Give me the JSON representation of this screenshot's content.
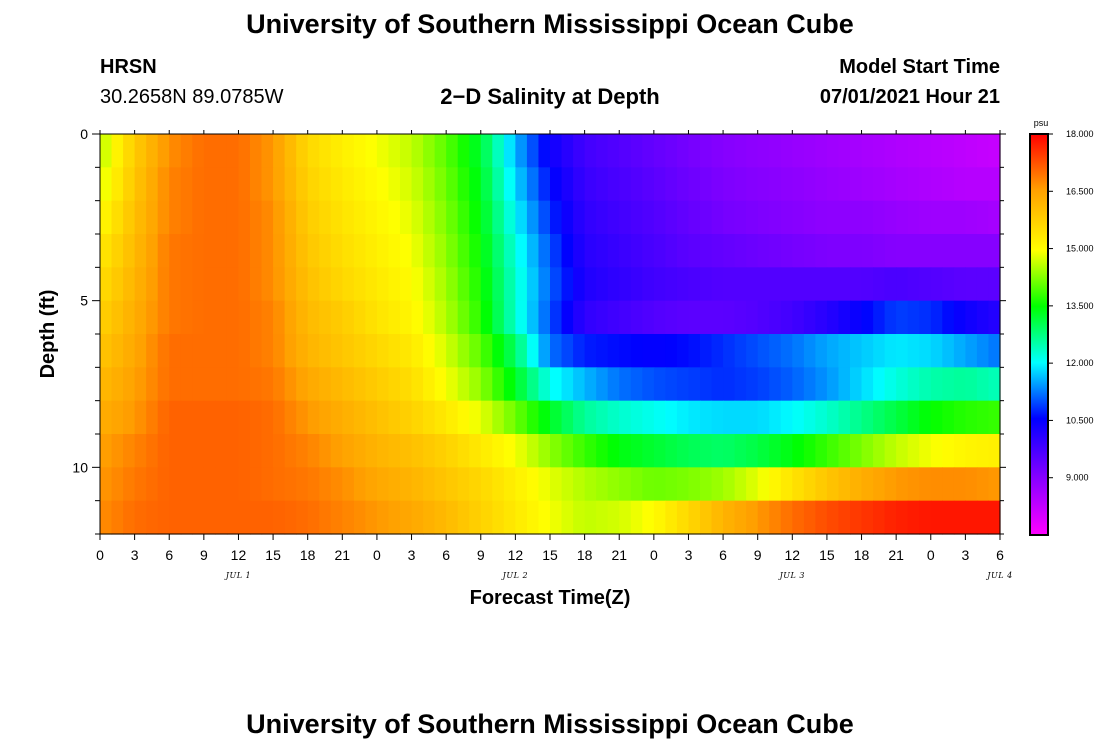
{
  "header": {
    "title_top": "University of Southern Mississippi Ocean Cube",
    "title_bottom": "University of Southern Mississippi Ocean Cube",
    "station": "HRSN",
    "coords": "30.2658N  89.0785W",
    "model_start_label": "Model Start Time",
    "model_start_value": "07/01/2021 Hour 21"
  },
  "chart_data": {
    "type": "heatmap",
    "title": "2−D Salinity at Depth",
    "xlabel": "Forecast Time(Z)",
    "ylabel": "Depth (ft)",
    "ylim": [
      0,
      12
    ],
    "y_ticks": [
      "0",
      "5",
      "10"
    ],
    "x_ticks": [
      "0",
      "3",
      "6",
      "9",
      "12",
      "15",
      "18",
      "21",
      "0",
      "3",
      "6",
      "9",
      "12",
      "15",
      "18",
      "21",
      "0",
      "3",
      "6",
      "9",
      "12",
      "15",
      "18",
      "21",
      "0",
      "3",
      "6"
    ],
    "day_labels": [
      "JUL 1",
      "JUL 2",
      "JUL 3",
      "JUL 4"
    ],
    "day_label_hours": [
      12,
      36,
      60,
      78
    ],
    "hours": 78,
    "layer_depths_ft": [
      0.5,
      1.5,
      2.5,
      3.5,
      4.5,
      5.5,
      6.5,
      7.5,
      8.5,
      9.5,
      10.5,
      11.5
    ],
    "colorbar": {
      "unit": "psu",
      "ticks": [
        "18.000",
        "16.500",
        "15.000",
        "13.500",
        "12.000",
        "10.500",
        "9.000"
      ],
      "min": 7.5,
      "max": 18.0
    },
    "profiles_psu": [
      {
        "layer": 0,
        "hours": [
          0,
          3,
          6,
          9,
          12,
          15,
          18,
          21,
          24,
          27,
          30,
          33,
          36,
          39,
          42,
          45,
          48,
          51,
          54,
          57,
          60,
          63,
          66,
          69,
          72,
          75,
          78
        ],
        "values": [
          14.5,
          15.8,
          16.7,
          17.0,
          17.0,
          16.6,
          15.6,
          15.2,
          14.9,
          14.6,
          14.0,
          13.2,
          11.6,
          10.4,
          9.8,
          9.6,
          9.4,
          9.2,
          9.0,
          8.9,
          8.8,
          8.7,
          8.6,
          8.5,
          8.4,
          8.3,
          8.2
        ]
      },
      {
        "layer": 1,
        "hours": [
          0,
          3,
          6,
          9,
          12,
          15,
          18,
          21,
          24,
          27,
          30,
          33,
          36,
          39,
          42,
          45,
          48,
          51,
          54,
          57,
          60,
          63,
          66,
          69,
          72,
          75,
          78
        ],
        "values": [
          14.7,
          15.9,
          16.8,
          17.0,
          17.0,
          16.6,
          15.7,
          15.3,
          15.0,
          14.7,
          14.1,
          13.3,
          11.8,
          10.6,
          9.9,
          9.7,
          9.5,
          9.3,
          9.1,
          9.0,
          8.9,
          8.8,
          8.7,
          8.6,
          8.5,
          8.4,
          8.4
        ]
      },
      {
        "layer": 2,
        "hours": [
          0,
          3,
          6,
          9,
          12,
          15,
          18,
          21,
          24,
          27,
          30,
          33,
          36,
          39,
          42,
          45,
          48,
          51,
          54,
          57,
          60,
          63,
          66,
          69,
          72,
          75,
          78
        ],
        "values": [
          15.0,
          16.0,
          16.8,
          17.0,
          17.0,
          16.7,
          15.8,
          15.4,
          15.1,
          14.8,
          14.2,
          13.4,
          12.0,
          10.8,
          10.0,
          9.8,
          9.6,
          9.4,
          9.2,
          9.1,
          9.0,
          8.9,
          8.9,
          8.8,
          8.7,
          8.7,
          8.6
        ]
      },
      {
        "layer": 3,
        "hours": [
          0,
          3,
          6,
          9,
          12,
          15,
          18,
          21,
          24,
          27,
          30,
          33,
          36,
          39,
          42,
          45,
          48,
          51,
          54,
          57,
          60,
          63,
          66,
          69,
          72,
          75,
          78
        ],
        "values": [
          15.3,
          16.1,
          16.9,
          17.0,
          17.0,
          16.7,
          15.9,
          15.5,
          15.2,
          14.9,
          14.3,
          13.5,
          12.2,
          11.0,
          10.1,
          9.9,
          9.7,
          9.5,
          9.4,
          9.3,
          9.2,
          9.1,
          9.1,
          9.0,
          9.0,
          9.0,
          9.0
        ]
      },
      {
        "layer": 4,
        "hours": [
          0,
          3,
          6,
          9,
          12,
          15,
          18,
          21,
          24,
          27,
          30,
          33,
          36,
          39,
          42,
          45,
          48,
          51,
          54,
          57,
          60,
          63,
          66,
          69,
          72,
          75,
          78
        ],
        "values": [
          15.5,
          16.2,
          16.9,
          17.0,
          17.0,
          16.7,
          16.0,
          15.6,
          15.3,
          15.0,
          14.4,
          13.6,
          12.3,
          11.1,
          10.2,
          10.0,
          9.8,
          9.7,
          9.6,
          9.6,
          9.6,
          9.6,
          9.6,
          9.7,
          9.6,
          9.5,
          9.5
        ]
      },
      {
        "layer": 5,
        "hours": [
          0,
          3,
          6,
          9,
          12,
          15,
          18,
          21,
          24,
          27,
          30,
          33,
          36,
          39,
          42,
          45,
          48,
          51,
          54,
          57,
          60,
          63,
          66,
          69,
          72,
          75,
          78
        ],
        "values": [
          15.7,
          16.3,
          16.9,
          17.0,
          17.0,
          16.8,
          16.1,
          15.8,
          15.4,
          15.1,
          14.5,
          13.7,
          12.3,
          11.0,
          10.0,
          9.8,
          9.6,
          9.5,
          9.5,
          9.6,
          9.8,
          10.1,
          10.5,
          10.9,
          10.8,
          10.4,
          10.1
        ]
      },
      {
        "layer": 6,
        "hours": [
          0,
          3,
          6,
          9,
          12,
          15,
          18,
          21,
          24,
          27,
          30,
          33,
          36,
          39,
          42,
          45,
          48,
          51,
          54,
          57,
          60,
          63,
          66,
          69,
          72,
          75,
          78
        ],
        "values": [
          15.9,
          16.4,
          17.0,
          17.0,
          17.0,
          16.8,
          16.2,
          15.9,
          15.6,
          15.3,
          14.7,
          14.0,
          12.9,
          11.2,
          10.7,
          10.6,
          10.5,
          10.6,
          10.8,
          11.0,
          11.2,
          11.5,
          11.7,
          11.9,
          11.8,
          11.5,
          11.2
        ]
      },
      {
        "layer": 7,
        "hours": [
          0,
          3,
          6,
          9,
          12,
          15,
          18,
          21,
          24,
          27,
          30,
          33,
          36,
          39,
          42,
          45,
          48,
          51,
          54,
          57,
          60,
          63,
          66,
          69,
          72,
          75,
          78
        ],
        "values": [
          16.1,
          16.5,
          17.0,
          17.0,
          17.0,
          16.9,
          16.4,
          16.1,
          15.8,
          15.5,
          14.9,
          14.3,
          13.3,
          12.1,
          11.6,
          11.2,
          11.0,
          10.9,
          10.8,
          10.9,
          11.1,
          11.4,
          11.8,
          12.2,
          12.5,
          12.6,
          12.4
        ]
      },
      {
        "layer": 8,
        "hours": [
          0,
          3,
          6,
          9,
          12,
          15,
          18,
          21,
          24,
          27,
          30,
          33,
          36,
          39,
          42,
          45,
          48,
          51,
          54,
          57,
          60,
          63,
          66,
          69,
          72,
          75,
          78
        ],
        "values": [
          16.3,
          16.6,
          17.1,
          17.1,
          17.1,
          17.0,
          16.6,
          16.3,
          16.0,
          15.7,
          15.3,
          14.8,
          14.1,
          13.3,
          12.6,
          12.3,
          12.1,
          11.9,
          11.8,
          11.8,
          12.0,
          12.3,
          12.7,
          13.1,
          13.5,
          13.7,
          13.8
        ]
      },
      {
        "layer": 9,
        "hours": [
          0,
          3,
          6,
          9,
          12,
          15,
          18,
          21,
          24,
          27,
          30,
          33,
          36,
          39,
          42,
          45,
          48,
          51,
          54,
          57,
          60,
          63,
          66,
          69,
          72,
          75,
          78
        ],
        "values": [
          16.5,
          16.8,
          17.1,
          17.1,
          17.1,
          17.0,
          16.8,
          16.5,
          16.2,
          16.0,
          15.7,
          15.3,
          14.9,
          14.3,
          13.8,
          13.4,
          13.2,
          13.0,
          12.9,
          13.1,
          13.4,
          13.8,
          14.2,
          14.6,
          14.9,
          15.1,
          15.2
        ]
      },
      {
        "layer": 10,
        "hours": [
          0,
          3,
          6,
          9,
          12,
          15,
          18,
          21,
          24,
          27,
          30,
          33,
          36,
          39,
          42,
          45,
          48,
          51,
          54,
          57,
          60,
          63,
          66,
          69,
          72,
          75,
          78
        ],
        "values": [
          16.6,
          16.9,
          17.1,
          17.1,
          17.1,
          17.0,
          16.9,
          16.7,
          16.4,
          16.2,
          15.9,
          15.6,
          15.2,
          14.8,
          14.5,
          14.3,
          14.1,
          14.2,
          14.4,
          14.8,
          15.4,
          15.9,
          16.3,
          16.6,
          16.7,
          16.7,
          16.6
        ]
      },
      {
        "layer": 11,
        "hours": [
          0,
          3,
          6,
          9,
          12,
          15,
          18,
          21,
          24,
          27,
          30,
          33,
          36,
          39,
          42,
          45,
          48,
          51,
          54,
          57,
          60,
          63,
          66,
          69,
          72,
          75,
          78
        ],
        "values": [
          16.7,
          17.0,
          17.1,
          17.1,
          17.1,
          17.1,
          17.0,
          16.8,
          16.6,
          16.4,
          16.1,
          15.7,
          15.3,
          14.9,
          14.6,
          14.7,
          15.0,
          15.6,
          16.2,
          16.6,
          17.0,
          17.3,
          17.5,
          17.7,
          17.8,
          17.8,
          17.8
        ]
      }
    ]
  }
}
